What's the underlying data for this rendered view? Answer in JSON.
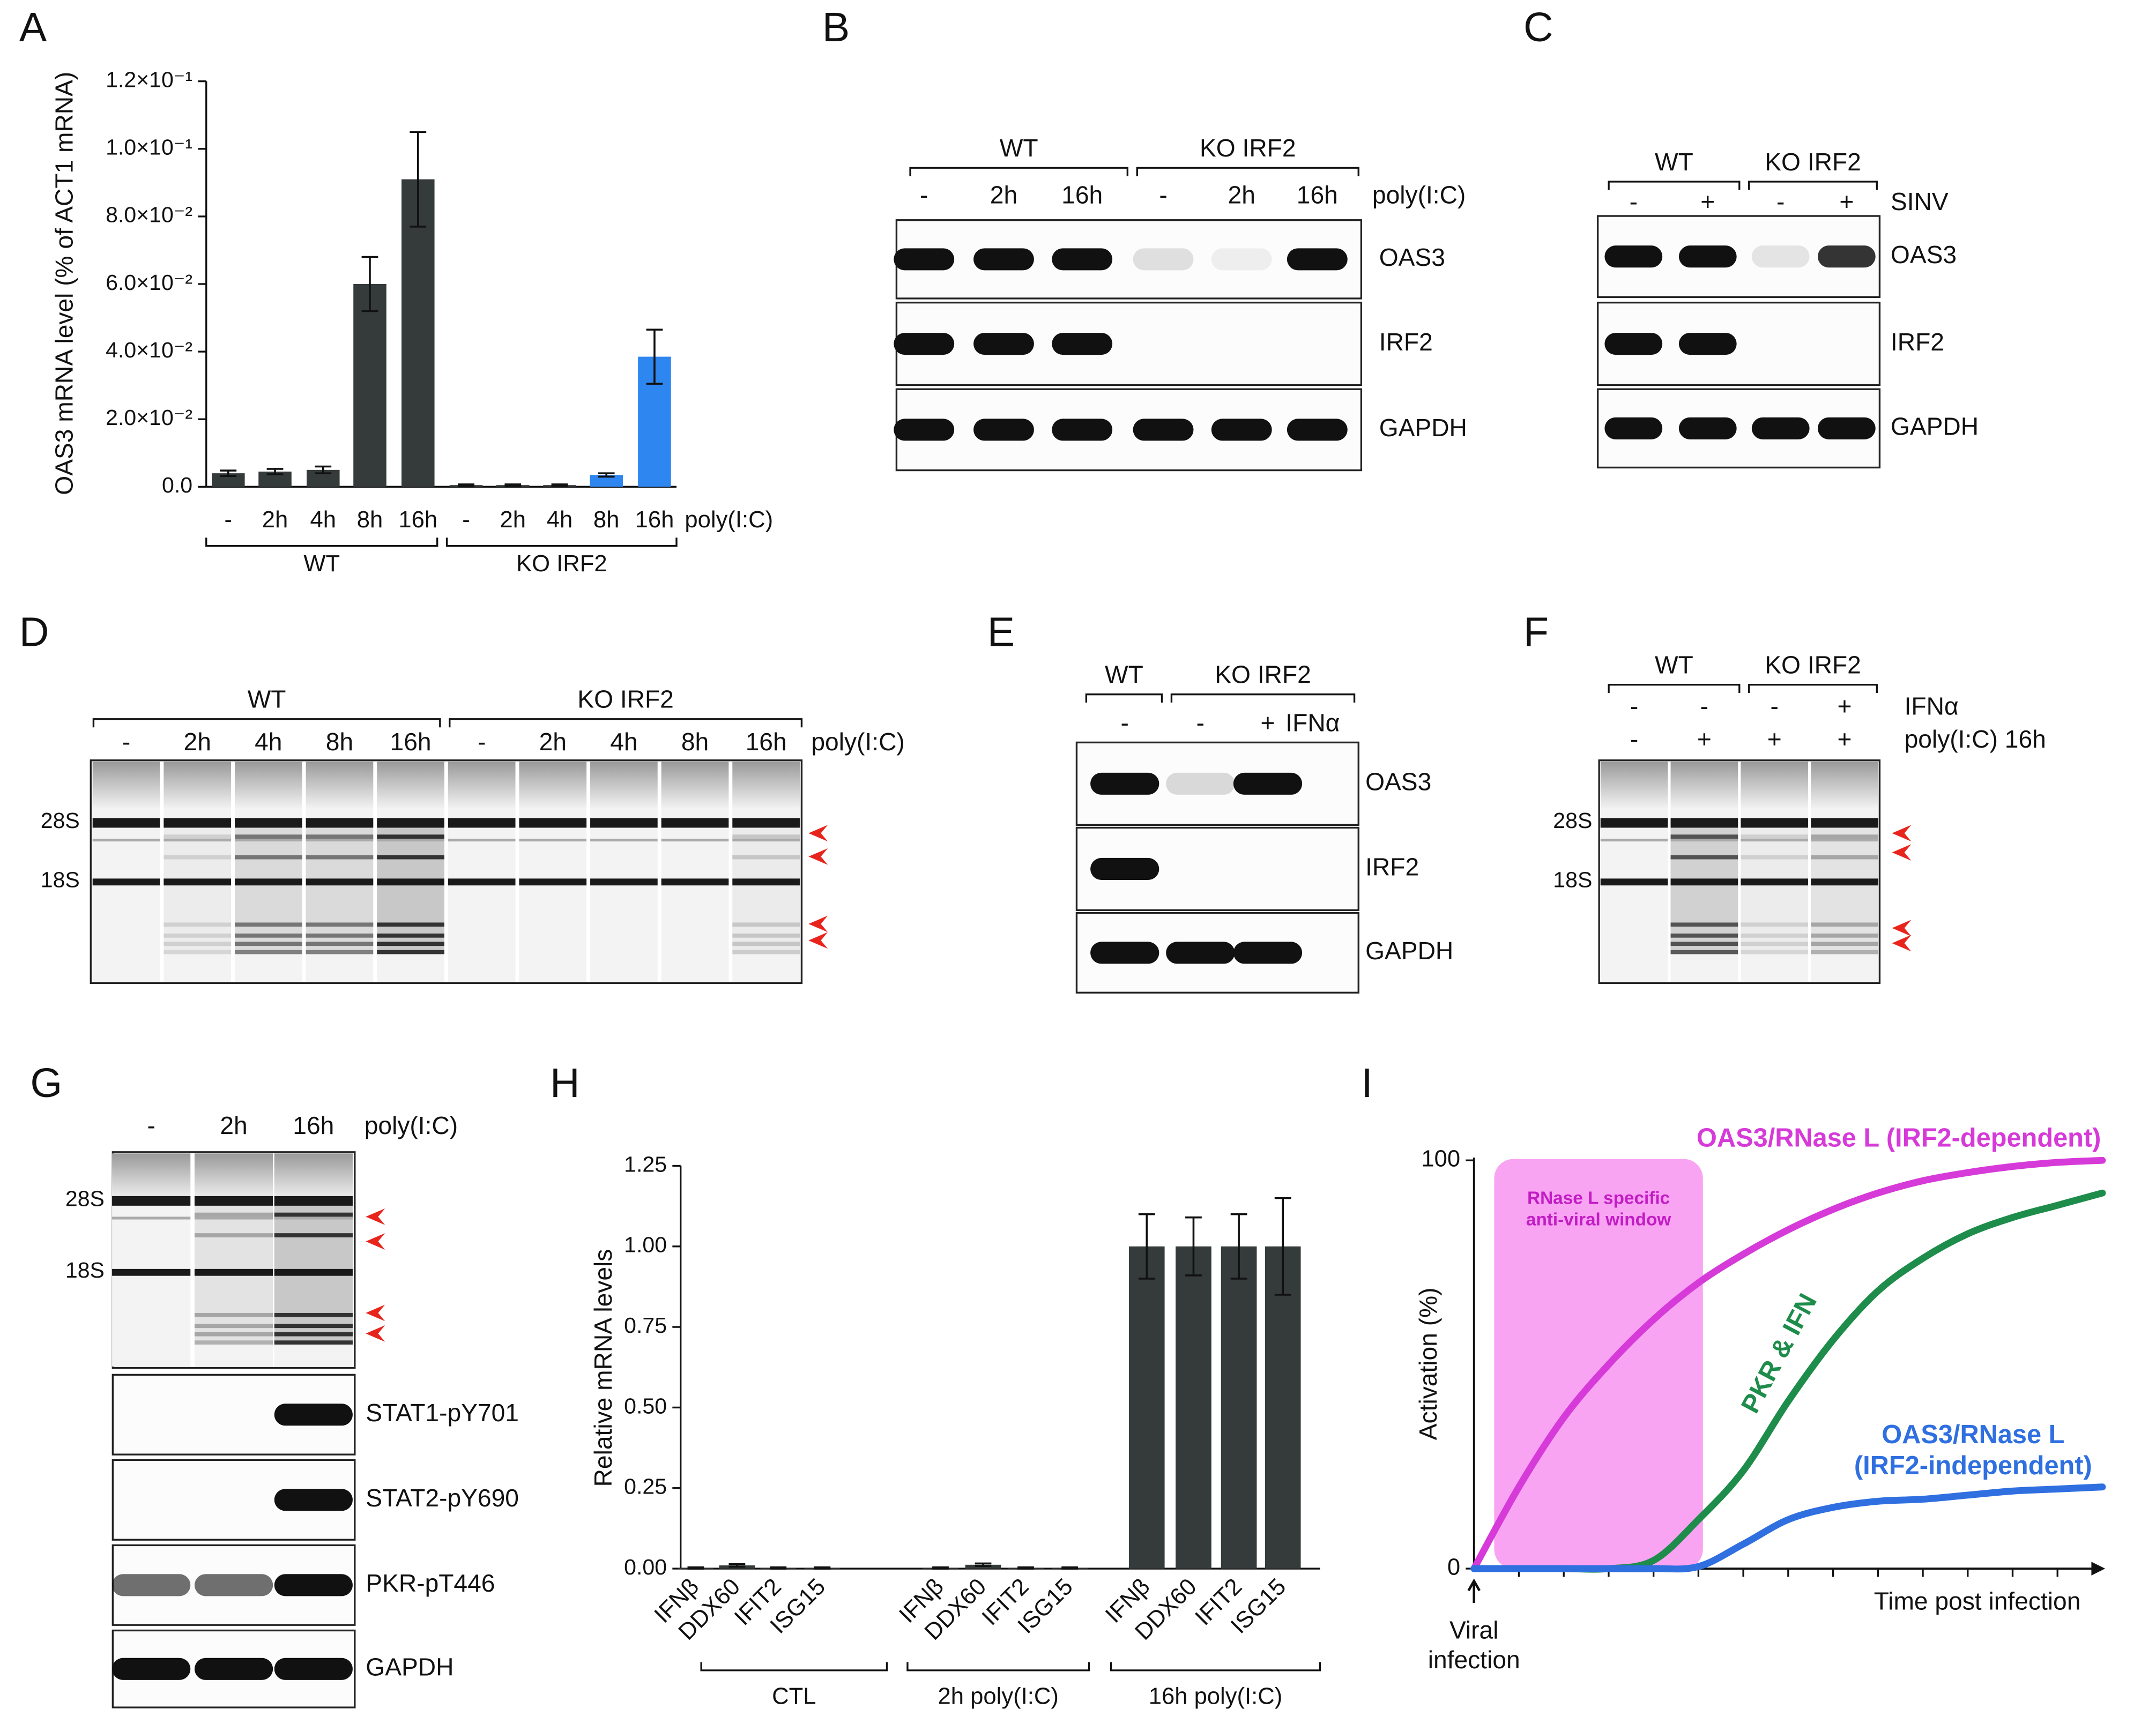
{
  "chart_data": [
    {
      "panel": "A",
      "type": "bar",
      "y_label": "OAS3 mRNA level (% of ACT1 mRNA)",
      "x_label": "poly(I:C)",
      "groups": [
        "WT",
        "KO IRF2"
      ],
      "categories": [
        "-",
        "2h",
        "4h",
        "8h",
        "16h",
        "-",
        "2h",
        "4h",
        "8h",
        "16h"
      ],
      "values": [
        0.004,
        0.0045,
        0.005,
        0.06,
        0.091,
        0.0005,
        0.0005,
        0.0005,
        0.0035,
        0.0385
      ],
      "errors": [
        0.0008,
        0.0008,
        0.001,
        0.008,
        0.014,
        0.0002,
        0.0002,
        0.0002,
        0.0005,
        0.008
      ],
      "colors": [
        "#353b3b",
        "#353b3b",
        "#353b3b",
        "#353b3b",
        "#353b3b",
        "#353b3b",
        "#353b3b",
        "#353b3b",
        "#2e86f0",
        "#2e86f0"
      ],
      "ylim": [
        0,
        0.12
      ],
      "yticks": [
        {
          "value": 0,
          "label": "0.0"
        },
        {
          "value": 0.02,
          "label": "2.0×10⁻²"
        },
        {
          "value": 0.04,
          "label": "4.0×10⁻²"
        },
        {
          "value": 0.06,
          "label": "6.0×10⁻²"
        },
        {
          "value": 0.08,
          "label": "8.0×10⁻²"
        },
        {
          "value": 0.1,
          "label": "1.0×10⁻¹"
        },
        {
          "value": 0.12,
          "label": "1.2×10⁻¹"
        }
      ]
    },
    {
      "panel": "H",
      "type": "bar",
      "y_label": "Relative mRNA levels",
      "groups": [
        "CTL",
        "2h poly(I:C)",
        "16h poly(I:C)"
      ],
      "categories": [
        "IFNβ",
        "DDX60",
        "IFIT2",
        "ISG15",
        "IFNβ",
        "DDX60",
        "IFIT2",
        "ISG15",
        "IFNβ",
        "DDX60",
        "IFIT2",
        "ISG15"
      ],
      "values": [
        0.002,
        0.01,
        0.002,
        0.002,
        0.002,
        0.012,
        0.002,
        0.002,
        1,
        1,
        1,
        1
      ],
      "errors": [
        0.002,
        0.004,
        0.002,
        0.002,
        0.002,
        0.004,
        0.002,
        0.002,
        0.1,
        0.09,
        0.1,
        0.15
      ],
      "color": "#353b3b",
      "ylim": [
        0,
        1.25
      ],
      "yticks": [
        {
          "value": 0,
          "label": "0.00"
        },
        {
          "value": 0.25,
          "label": "0.25"
        },
        {
          "value": 0.5,
          "label": "0.50"
        },
        {
          "value": 0.75,
          "label": "0.75"
        },
        {
          "value": 1,
          "label": "1.00"
        },
        {
          "value": 1.25,
          "label": "1.25"
        }
      ]
    },
    {
      "panel": "I",
      "type": "line",
      "y_label": "Activation (%)",
      "x_label": "Time post infection",
      "annotation": "Viral infection",
      "window": {
        "label": "RNase L specific anti-viral window",
        "xlim": [
          0.45,
          5.1
        ],
        "color": "#f9a3f3"
      },
      "x": [
        0,
        1,
        2,
        3,
        4,
        5,
        6,
        7,
        8,
        9,
        10,
        11,
        12,
        13,
        14
      ],
      "xlim": [
        0,
        14
      ],
      "ylim": [
        0,
        100
      ],
      "yticks": [
        0,
        100
      ],
      "series": [
        {
          "name": "OAS3/RNase L (IRF2-dependent)",
          "color": "#d63ad8",
          "values": [
            0,
            20,
            37,
            50,
            61,
            70,
            77,
            83,
            88,
            92,
            95,
            97,
            98.5,
            99.5,
            100
          ]
        },
        {
          "name": "PKR & IFN",
          "color": "#1e8c4a",
          "values": [
            0,
            0,
            0,
            0,
            2,
            12,
            24,
            41,
            56,
            68,
            76,
            82,
            86,
            89,
            92
          ]
        },
        {
          "name": "OAS3/RNase L (IRF2-independent)",
          "color": "#2f6fe0",
          "values": [
            0,
            0,
            0,
            0,
            0,
            0.5,
            6,
            12,
            15,
            16.5,
            17,
            18,
            19,
            19.5,
            20
          ]
        }
      ]
    }
  ],
  "blots": [
    {
      "panel": "B",
      "groups": [
        "WT",
        "KO IRF2"
      ],
      "treatments": [
        {
          "name": "poly(I:C)",
          "lanes": [
            "-",
            "2h",
            "16h",
            "-",
            "2h",
            "16h"
          ]
        }
      ],
      "rows": [
        "OAS3",
        "IRF2",
        "GAPDH"
      ]
    },
    {
      "panel": "C",
      "groups": [
        "WT",
        "KO IRF2"
      ],
      "treatments": [
        {
          "name": "SINV",
          "lanes": [
            "-",
            "+",
            "-",
            "+"
          ]
        }
      ],
      "rows": [
        "OAS3",
        "IRF2",
        "GAPDH"
      ]
    },
    {
      "panel": "D",
      "groups": [
        "WT",
        "KO IRF2"
      ],
      "treatments": [
        {
          "name": "poly(I:C)",
          "lanes": [
            "-",
            "2h",
            "4h",
            "8h",
            "16h",
            "-",
            "2h",
            "4h",
            "8h",
            "16h"
          ]
        }
      ],
      "markers": [
        "28S",
        "18S"
      ]
    },
    {
      "panel": "E",
      "groups": [
        "WT",
        "KO IRF2"
      ],
      "treatments": [
        {
          "name": "IFNα",
          "lanes": [
            "-",
            "-",
            "+"
          ]
        }
      ],
      "rows": [
        "OAS3",
        "IRF2",
        "GAPDH"
      ]
    },
    {
      "panel": "F",
      "groups": [
        "WT",
        "KO IRF2"
      ],
      "treatments": [
        {
          "name": "IFNα",
          "lanes": [
            "-",
            "-",
            "-",
            "+"
          ]
        },
        {
          "name": "poly(I:C) 16h",
          "lanes": [
            "-",
            "+",
            "+",
            "+"
          ]
        }
      ],
      "markers": [
        "28S",
        "18S"
      ]
    },
    {
      "panel": "G",
      "treatments": [
        {
          "name": "poly(I:C)",
          "lanes": [
            "-",
            "2h",
            "16h"
          ]
        }
      ],
      "markers": [
        "28S",
        "18S"
      ],
      "rows": [
        "STAT1-pY701",
        "STAT2-pY690",
        "PKR-pT446",
        "GAPDH"
      ]
    }
  ]
}
